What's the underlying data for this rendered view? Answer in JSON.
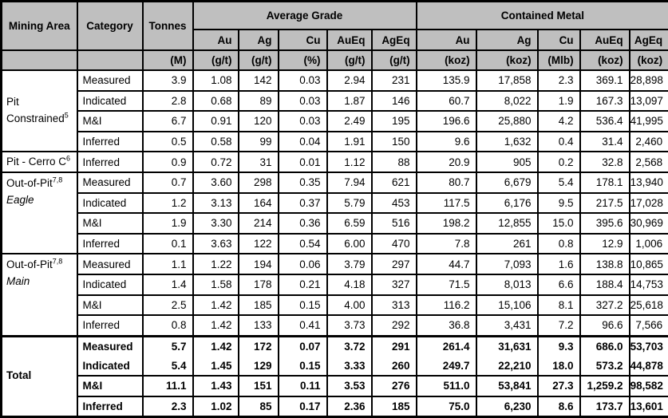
{
  "header": {
    "mining_area": "Mining Area",
    "category": "Category",
    "tonnes": "Tonnes",
    "avg_grade": "Average Grade",
    "contained_metal": "Contained Metal",
    "grade_cols": [
      "Au",
      "Ag",
      "Cu",
      "AuEq",
      "AgEq"
    ],
    "metal_cols": [
      "Au",
      "Ag",
      "Cu",
      "AuEq",
      "AgEq"
    ],
    "units": [
      "",
      "",
      "(M)",
      "(g/t)",
      "(g/t)",
      "(%)",
      "(g/t)",
      "(g/t)",
      "(koz)",
      "(koz)",
      "(Mlb)",
      "(koz)",
      "(koz)"
    ]
  },
  "colors": {
    "header_bg": "#bfbfbf",
    "border": "#000000",
    "body_bg": "#ffffff"
  },
  "sections": [
    {
      "area": "Pit Constrained",
      "area_sup": "5",
      "area_sub": "",
      "sub_italic": false,
      "bold": false,
      "rows": [
        {
          "category": "Measured",
          "values": [
            "3.9",
            "1.08",
            "142",
            "0.03",
            "2.94",
            "231",
            "135.9",
            "17,858",
            "2.3",
            "369.1",
            "28,898"
          ]
        },
        {
          "category": "Indicated",
          "values": [
            "2.8",
            "0.68",
            "89",
            "0.03",
            "1.87",
            "146",
            "60.7",
            "8,022",
            "1.9",
            "167.3",
            "13,097"
          ]
        },
        {
          "category": "M&I",
          "values": [
            "6.7",
            "0.91",
            "120",
            "0.03",
            "2.49",
            "195",
            "196.6",
            "25,880",
            "4.2",
            "536.4",
            "41,995"
          ]
        },
        {
          "category": "Inferred",
          "values": [
            "0.5",
            "0.58",
            "99",
            "0.04",
            "1.91",
            "150",
            "9.6",
            "1,632",
            "0.4",
            "31.4",
            "2,460"
          ]
        }
      ]
    },
    {
      "area": "Pit - Cerro C",
      "area_sup": "6",
      "area_sub": "",
      "sub_italic": false,
      "bold": false,
      "rows": [
        {
          "category": "Inferred",
          "values": [
            "0.9",
            "0.72",
            "31",
            "0.01",
            "1.12",
            "88",
            "20.9",
            "905",
            "0.2",
            "32.8",
            "2,568"
          ]
        }
      ]
    },
    {
      "area": "Out-of-Pit",
      "area_sup": "7,8",
      "area_sub": "Eagle",
      "sub_italic": true,
      "bold": false,
      "rows": [
        {
          "category": "Measured",
          "values": [
            "0.7",
            "3.60",
            "298",
            "0.35",
            "7.94",
            "621",
            "80.7",
            "6,679",
            "5.4",
            "178.1",
            "13,940"
          ]
        },
        {
          "category": "Indicated",
          "values": [
            "1.2",
            "3.13",
            "164",
            "0.37",
            "5.79",
            "453",
            "117.5",
            "6,176",
            "9.5",
            "217.5",
            "17,028"
          ]
        },
        {
          "category": "M&I",
          "values": [
            "1.9",
            "3.30",
            "214",
            "0.36",
            "6.59",
            "516",
            "198.2",
            "12,855",
            "15.0",
            "395.6",
            "30,969"
          ]
        },
        {
          "category": "Inferred",
          "values": [
            "0.1",
            "3.63",
            "122",
            "0.54",
            "6.00",
            "470",
            "7.8",
            "261",
            "0.8",
            "12.9",
            "1,006"
          ]
        }
      ]
    },
    {
      "area": "Out-of-Pit",
      "area_sup": "7,8",
      "area_sub": "Main",
      "sub_italic": true,
      "bold": false,
      "rows": [
        {
          "category": "Measured",
          "values": [
            "1.1",
            "1.22",
            "194",
            "0.06",
            "3.79",
            "297",
            "44.7",
            "7,093",
            "1.6",
            "138.8",
            "10,865"
          ]
        },
        {
          "category": "Indicated",
          "values": [
            "1.4",
            "1.58",
            "178",
            "0.21",
            "4.18",
            "327",
            "71.5",
            "8,013",
            "6.6",
            "188.4",
            "14,753"
          ]
        },
        {
          "category": "M&I",
          "values": [
            "2.5",
            "1.42",
            "185",
            "0.15",
            "4.00",
            "313",
            "116.2",
            "15,106",
            "8.1",
            "327.2",
            "25,618"
          ]
        },
        {
          "category": "Inferred",
          "values": [
            "0.8",
            "1.42",
            "133",
            "0.41",
            "3.73",
            "292",
            "36.8",
            "3,431",
            "7.2",
            "96.6",
            "7,566"
          ]
        }
      ]
    },
    {
      "area": "Total",
      "area_sup": "",
      "area_sub": "",
      "sub_italic": false,
      "bold": true,
      "rows": [
        {
          "category": "Measured",
          "values": [
            "5.7",
            "1.42",
            "172",
            "0.07",
            "3.72",
            "291",
            "261.4",
            "31,631",
            "9.3",
            "686.0",
            "53,703"
          ]
        },
        {
          "category": "Indicated",
          "values": [
            "5.4",
            "1.45",
            "129",
            "0.15",
            "3.33",
            "260",
            "249.7",
            "22,210",
            "18.0",
            "573.2",
            "44,878"
          ]
        },
        {
          "category": "M&I",
          "values": [
            "11.1",
            "1.43",
            "151",
            "0.11",
            "3.53",
            "276",
            "511.0",
            "53,841",
            "27.3",
            "1,259.2",
            "98,582"
          ]
        },
        {
          "category": "Inferred",
          "values": [
            "2.3",
            "1.02",
            "85",
            "0.17",
            "2.36",
            "185",
            "75.0",
            "6,230",
            "8.6",
            "173.7",
            "13,601"
          ]
        }
      ]
    }
  ]
}
